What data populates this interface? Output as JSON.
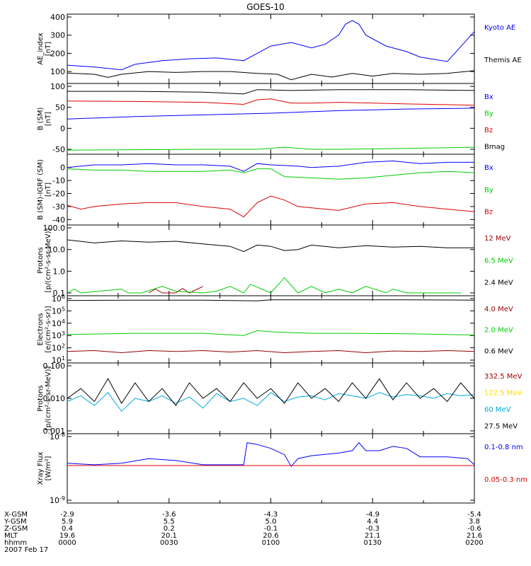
{
  "title": "GOES-10",
  "colors": {
    "black": "#000000",
    "blue": "#0000ff",
    "red": "#dd0000",
    "green": "#00cc00",
    "darkred": "#990000",
    "yellow": "#ffdd00",
    "cyan": "#00aadd"
  },
  "chart_data": [
    {
      "type": "line",
      "ylabel": [
        "AE_index",
        "[nT]"
      ],
      "ylim": [
        50,
        400
      ],
      "yscale": "linear",
      "yticks": [
        {
          "v": 100,
          "label": "100"
        },
        {
          "v": 200,
          "label": "200"
        },
        {
          "v": 300,
          "label": "300"
        },
        {
          "v": 400,
          "label": "400"
        }
      ],
      "series": [
        {
          "name": "Kyoto AE",
          "color": "#0000ff",
          "label": "Kyoto AE",
          "x": [
            0,
            4,
            8,
            10,
            14,
            18,
            22,
            26,
            30,
            33,
            36,
            38,
            40,
            41,
            42,
            43,
            44,
            47,
            50,
            52,
            56,
            60
          ],
          "y": [
            135,
            125,
            110,
            140,
            160,
            170,
            175,
            160,
            240,
            260,
            230,
            250,
            300,
            360,
            380,
            360,
            300,
            240,
            210,
            180,
            155,
            320
          ]
        },
        {
          "name": "Themis AE",
          "color": "#000000",
          "label": "Themis AE",
          "x": [
            0,
            4,
            6,
            8,
            12,
            16,
            20,
            24,
            28,
            31,
            33,
            36,
            39,
            42,
            45,
            48,
            52,
            56,
            60
          ],
          "y": [
            92,
            85,
            68,
            85,
            100,
            95,
            100,
            100,
            90,
            85,
            55,
            85,
            70,
            90,
            75,
            90,
            85,
            90,
            105
          ]
        }
      ]
    },
    {
      "type": "line",
      "ylabel": [
        "B (SM)",
        "[nT]"
      ],
      "ylim": [
        -55,
        100
      ],
      "yscale": "linear",
      "yticks": [
        {
          "v": -50,
          "label": "-50"
        },
        {
          "v": 0,
          "label": "0"
        },
        {
          "v": 50,
          "label": "50"
        },
        {
          "v": 100,
          "label": "100"
        }
      ],
      "series": [
        {
          "name": "Bx",
          "color": "#0000ff",
          "label": "Bx",
          "x": [
            0,
            10,
            20,
            30,
            40,
            50,
            60
          ],
          "y": [
            22,
            28,
            32,
            36,
            42,
            46,
            48
          ]
        },
        {
          "name": "By",
          "color": "#00cc00",
          "label": "By",
          "x": [
            0,
            10,
            20,
            28,
            32,
            36,
            40,
            50,
            60
          ],
          "y": [
            -52,
            -51,
            -50,
            -50,
            -45,
            -50,
            -50,
            -48,
            -45
          ]
        },
        {
          "name": "Bz",
          "color": "#dd0000",
          "label": "Bz",
          "x": [
            0,
            10,
            20,
            26,
            28,
            30,
            33,
            36,
            40,
            50,
            60
          ],
          "y": [
            65,
            64,
            62,
            57,
            68,
            70,
            60,
            60,
            62,
            58,
            55
          ]
        },
        {
          "name": "Bmag",
          "color": "#000000",
          "label": "Bmag",
          "x": [
            0,
            10,
            20,
            26,
            28,
            33,
            40,
            50,
            60
          ],
          "y": [
            88,
            88,
            86,
            82,
            92,
            90,
            92,
            92,
            90
          ]
        }
      ]
    },
    {
      "type": "line",
      "ylabel": [
        "B (SM)-IGRF (SM)",
        "[nT]"
      ],
      "ylim": [
        -42,
        8
      ],
      "yscale": "linear",
      "yticks": [
        {
          "v": -40,
          "label": "-40"
        },
        {
          "v": -30,
          "label": "-30"
        },
        {
          "v": -20,
          "label": "-20"
        },
        {
          "v": -10,
          "label": "-10"
        },
        {
          "v": 0,
          "label": "0"
        }
      ],
      "series": [
        {
          "name": "Bx",
          "color": "#0000ff",
          "label": "Bx",
          "x": [
            0,
            4,
            8,
            12,
            16,
            20,
            24,
            26,
            28,
            30,
            34,
            36,
            40,
            44,
            48,
            52,
            56,
            60
          ],
          "y": [
            0,
            2,
            2,
            3,
            2,
            2,
            1,
            -3,
            3,
            2,
            1,
            0,
            1,
            4,
            5,
            3,
            4,
            4
          ]
        },
        {
          "name": "By",
          "color": "#00cc00",
          "label": "By",
          "x": [
            0,
            4,
            8,
            12,
            16,
            20,
            24,
            26,
            28,
            30,
            32,
            36,
            40,
            44,
            48,
            52,
            56,
            60
          ],
          "y": [
            -1,
            -2,
            -2,
            -3,
            -3,
            -3,
            -2,
            -4,
            -1,
            -1,
            -7,
            -8,
            -9,
            -8,
            -6,
            -4,
            -3,
            -4
          ]
        },
        {
          "name": "Bz",
          "color": "#dd0000",
          "label": "Bz",
          "x": [
            0,
            2,
            4,
            8,
            12,
            16,
            20,
            24,
            26,
            28,
            30,
            32,
            34,
            36,
            40,
            44,
            48,
            52,
            56,
            60
          ],
          "y": [
            -29,
            -32,
            -30,
            -28,
            -27,
            -27,
            -30,
            -32,
            -38,
            -27,
            -22,
            -25,
            -30,
            -31,
            -33,
            -28,
            -27,
            -30,
            -32,
            -34
          ]
        }
      ]
    },
    {
      "type": "line",
      "ylabel": [
        "Protons",
        "[p/(cm²-s-sr-MeV)]"
      ],
      "ylim": [
        0.1,
        100
      ],
      "yscale": "log",
      "yticks": [
        {
          "v": 0.1,
          "label": "0.1"
        },
        {
          "v": 1,
          "label": "1.0"
        },
        {
          "v": 10,
          "label": "10.0"
        },
        {
          "v": 100,
          "label": "100.0"
        }
      ],
      "series": [
        {
          "name": "12 MeV",
          "color": "#990000",
          "label": "12 MeV",
          "x": [
            12,
            13,
            14,
            16,
            17,
            18,
            20
          ],
          "y": [
            0.1,
            0.15,
            0.1,
            0.1,
            0.16,
            0.1,
            0.2
          ]
        },
        {
          "name": "6.5 MeV",
          "color": "#00cc00",
          "label": "6.5 MeV",
          "x": [
            0,
            1,
            2,
            8,
            9,
            11,
            14,
            16,
            20,
            22,
            24,
            26,
            27,
            30,
            32,
            34,
            36,
            38,
            40,
            42,
            44,
            47,
            48,
            50,
            54,
            56,
            58
          ],
          "y": [
            0.1,
            0.15,
            0.1,
            0.15,
            0.1,
            0.1,
            0.2,
            0.12,
            0.1,
            0.12,
            0.2,
            0.1,
            0.25,
            0.1,
            0.5,
            0.1,
            0.2,
            0.1,
            0.15,
            0.1,
            0.2,
            0.1,
            0.15,
            0.1,
            0.1,
            0.1,
            0.1
          ]
        },
        {
          "name": "2.4 MeV",
          "color": "#000000",
          "label": "2.4 MeV",
          "x": [
            0,
            4,
            8,
            12,
            16,
            20,
            24,
            26,
            28,
            30,
            32,
            34,
            36,
            40,
            44,
            48,
            52,
            56,
            60
          ],
          "y": [
            28,
            20,
            25,
            22,
            24,
            18,
            14,
            8,
            16,
            14,
            9,
            10,
            16,
            12,
            15,
            13,
            14,
            12,
            12
          ]
        }
      ]
    },
    {
      "type": "line",
      "ylabel": [
        "Electrons",
        "[e/(cm²-s-sr)]"
      ],
      "ylim": [
        10,
        1000000
      ],
      "yscale": "log",
      "yticks": [
        {
          "v": 10,
          "label": "10^1"
        },
        {
          "v": 100,
          "label": "10^2"
        },
        {
          "v": 1000,
          "label": "10^3"
        },
        {
          "v": 10000,
          "label": "10^4"
        },
        {
          "v": 100000,
          "label": "10^5"
        },
        {
          "v": 1000000,
          "label": "10^6"
        }
      ],
      "series": [
        {
          "name": "4.0 MeV",
          "color": "#990000",
          "label": "4.0 MeV",
          "x": [
            0,
            4,
            8,
            12,
            16,
            20,
            24,
            28,
            32,
            36,
            40,
            44,
            48,
            52,
            56,
            60
          ],
          "y": [
            50,
            60,
            40,
            60,
            50,
            60,
            45,
            60,
            40,
            50,
            60,
            40,
            55,
            50,
            60,
            50
          ]
        },
        {
          "name": "2.0 MeV",
          "color": "#00cc00",
          "label": "2.0 MeV",
          "x": [
            0,
            10,
            20,
            26,
            28,
            30,
            36,
            40,
            50,
            60
          ],
          "y": [
            1200,
            1500,
            1500,
            1000,
            2500,
            2000,
            1500,
            1500,
            1400,
            1100
          ]
        },
        {
          "name": "0.6 MeV",
          "color": "#000000",
          "label": "0.6 MeV",
          "x": [
            0,
            10,
            20,
            28,
            30,
            40,
            50,
            60
          ],
          "y": [
            700000,
            750000,
            750000,
            650000,
            800000,
            800000,
            800000,
            750000
          ]
        }
      ]
    },
    {
      "type": "line",
      "ylabel": [
        "Protons",
        "[p/(cm²-s-sr-MeV)]"
      ],
      "ylim": [
        0.001,
        0.1
      ],
      "yscale": "log",
      "yticks": [
        {
          "v": 0.001,
          "label": "0.001"
        },
        {
          "v": 0.01,
          "label": "0.010"
        },
        {
          "v": 0.1,
          "label": "0.100"
        }
      ],
      "series": [
        {
          "name": "332.5 MeV",
          "color": "#990000",
          "label": "332.5 MeV",
          "x": [],
          "y": []
        },
        {
          "name": "122.5 MeV",
          "color": "#ffdd00",
          "label": "122.5 MeV",
          "x": [],
          "y": []
        },
        {
          "name": "60 MeV",
          "color": "#00aadd",
          "label": "60 MeV",
          "x": [
            0,
            2,
            4,
            6,
            8,
            10,
            12,
            14,
            16,
            18,
            20,
            22,
            24,
            26,
            28,
            30,
            32,
            34,
            36,
            38,
            40,
            42,
            44,
            46,
            48,
            50,
            52,
            54,
            56,
            58,
            60
          ],
          "y": [
            0.008,
            0.012,
            0.006,
            0.015,
            0.004,
            0.01,
            0.008,
            0.012,
            0.007,
            0.011,
            0.005,
            0.014,
            0.008,
            0.01,
            0.006,
            0.015,
            0.008,
            0.011,
            0.012,
            0.009,
            0.014,
            0.012,
            0.01,
            0.015,
            0.011,
            0.013,
            0.012,
            0.01,
            0.014,
            0.012,
            0.013
          ]
        },
        {
          "name": "27.5 MeV",
          "color": "#000000",
          "label": "27.5 MeV",
          "x": [
            0,
            2,
            4,
            6,
            8,
            10,
            12,
            14,
            16,
            18,
            20,
            22,
            24,
            26,
            28,
            30,
            32,
            34,
            36,
            38,
            40,
            42,
            44,
            46,
            48,
            50,
            52,
            54,
            56,
            58,
            60
          ],
          "y": [
            0.01,
            0.02,
            0.008,
            0.04,
            0.007,
            0.03,
            0.008,
            0.02,
            0.006,
            0.03,
            0.01,
            0.02,
            0.008,
            0.03,
            0.01,
            0.02,
            0.007,
            0.03,
            0.01,
            0.02,
            0.008,
            0.03,
            0.01,
            0.04,
            0.009,
            0.03,
            0.01,
            0.02,
            0.008,
            0.03,
            0.01
          ]
        }
      ]
    },
    {
      "type": "line",
      "ylabel": [
        "Xray Flux",
        "[W/m²]"
      ],
      "ylim": [
        1e-09,
        1e-08
      ],
      "yscale": "log",
      "yticks": [
        {
          "v": 1e-09,
          "label": "10^-9"
        },
        {
          "v": 1e-08,
          "label": "10^-8"
        }
      ],
      "series": [
        {
          "name": "0.1-0.8 nm",
          "color": "#0000ff",
          "label": "0.1-0.8 nm",
          "x": [
            0,
            4,
            8,
            12,
            16,
            20,
            24,
            26,
            26.5,
            28,
            30,
            32,
            33,
            34,
            36,
            40,
            42,
            43,
            44,
            46,
            48,
            50,
            52,
            56,
            59,
            60
          ],
          "y": [
            3.8e-09,
            3.6e-09,
            3.8e-09,
            4.5e-09,
            4.2e-09,
            3.6e-09,
            3.6e-09,
            3.6e-09,
            8e-09,
            7.5e-09,
            6.5e-09,
            5.2e-09,
            3.4e-09,
            4.5e-09,
            5e-09,
            5.5e-09,
            6e-09,
            8e-09,
            6e-09,
            6e-09,
            7e-09,
            6.5e-09,
            4.8e-09,
            4.8e-09,
            4.5e-09,
            3.6e-09
          ]
        },
        {
          "name": "0.05-0.3 nm",
          "color": "#dd0000",
          "label": "0.05-0.3 nm",
          "x": [
            0,
            60
          ],
          "y": [
            3.5e-09,
            3.5e-09
          ]
        }
      ]
    }
  ],
  "footer": {
    "row_labels": [
      "X-GSM",
      "Y-GSM",
      "Z-GSM",
      "MLT",
      "hhmm",
      "2007 Feb 17"
    ],
    "columns": [
      {
        "x": 0,
        "values": [
          "-2.9",
          "5.9",
          "0.4",
          "19.6",
          "0000"
        ]
      },
      {
        "x": 15,
        "values": [
          "-3.6",
          "5.5",
          "0.2",
          "20.1",
          "0030"
        ]
      },
      {
        "x": 30,
        "values": [
          "-4.3",
          "5.0",
          "-0.1",
          "20.6",
          "0100"
        ]
      },
      {
        "x": 45,
        "values": [
          "-4.9",
          "4.4",
          "-0.3",
          "21.1",
          "0130"
        ]
      },
      {
        "x": 60,
        "values": [
          "-5.4",
          "3.8",
          "-0.6",
          "21.6",
          "0200"
        ]
      }
    ]
  }
}
